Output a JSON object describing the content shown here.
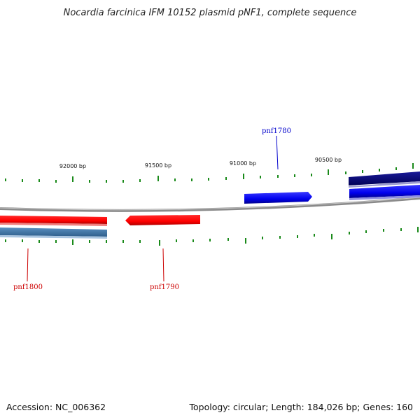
{
  "title": "Nocardia farcinica IFM 10152 plasmid pNF1, complete sequence",
  "accession": "Accession: NC_006362",
  "summary": "Topology: circular; Length: 184,026 bp; Genes: 160",
  "scale_labels": [
    "92000 bp",
    "91500 bp",
    "91000 bp",
    "90500 bp"
  ],
  "genes": [
    {
      "name": "pnf1780",
      "color": "#0000cc"
    },
    {
      "name": "pnf1790",
      "color": "#cc0000"
    },
    {
      "name": "pnf1800",
      "color": "#cc0000"
    }
  ],
  "colors": {
    "backbone": "#777777",
    "tick": "#1a8a1a",
    "forward_gene": "#0000ee",
    "forward_gene_dark": "#000077",
    "reverse_gene": "#ff0000",
    "reverse_gene_alt": "#3f76a8"
  }
}
